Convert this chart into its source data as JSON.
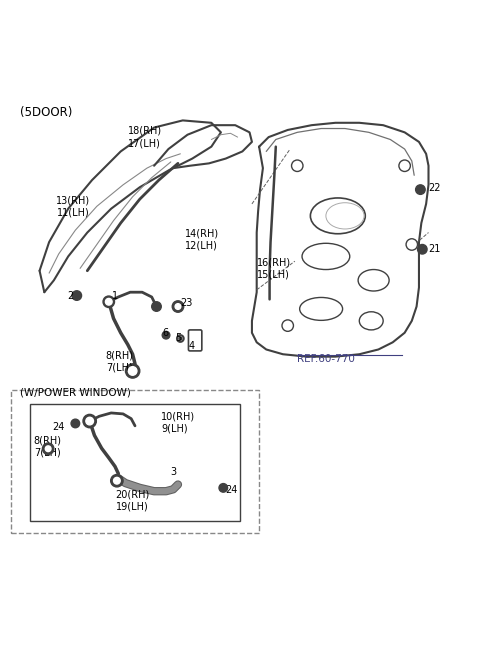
{
  "title": "(5DOOR)",
  "bg_color": "#ffffff",
  "ref_text": "REF.60-770",
  "power_window_label": "(W/POWER WINDOW)",
  "line_color": "#404040",
  "dashed_color": "#606060",
  "part_color": "#505050"
}
